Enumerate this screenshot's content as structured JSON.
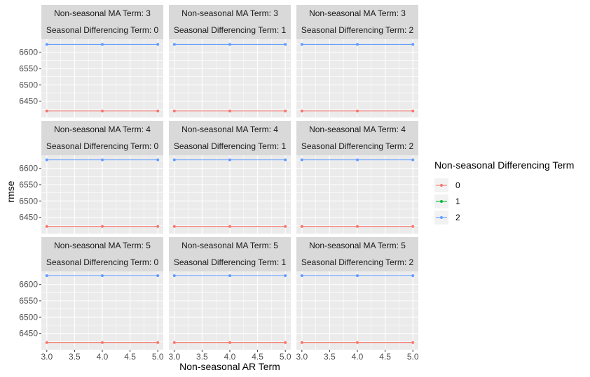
{
  "chart_data": {
    "type": "line",
    "xlabel": "Non-seasonal AR Term",
    "ylabel": "rmse",
    "xlim": [
      3.0,
      5.0
    ],
    "ylim": [
      6400,
      6640
    ],
    "x_ticks": [
      "3.0",
      "3.5",
      "4.0",
      "4.5",
      "5.0"
    ],
    "y_ticks": [
      "6450",
      "6500",
      "6550",
      "6600"
    ],
    "x_tick_values": [
      3.0,
      3.5,
      4.0,
      4.5,
      5.0
    ],
    "y_tick_values": [
      6450,
      6500,
      6550,
      6600
    ],
    "grid": true,
    "legend": {
      "title": "Non-seasonal Differencing Term",
      "position": "right",
      "entries": [
        {
          "label": "0",
          "color": "#F8766D"
        },
        {
          "label": "1",
          "color": "#00BA38"
        },
        {
          "label": "2",
          "color": "#619CFF"
        }
      ]
    },
    "facet_rows": [
      "Non-seasonal MA Term: 3",
      "Non-seasonal MA Term: 4",
      "Non-seasonal MA Term: 5"
    ],
    "facet_cols": [
      "Seasonal Differencing Term: 0",
      "Seasonal Differencing Term: 1",
      "Seasonal Differencing Term: 2"
    ],
    "x": [
      3,
      4,
      5
    ],
    "series": [
      {
        "name": "0",
        "color": "#F8766D",
        "panels": [
          [
            [
              6420,
              6420,
              6420
            ],
            [
              6420,
              6420,
              6420
            ],
            [
              6420,
              6420,
              6420
            ]
          ],
          [
            [
              6422,
              6422,
              6422
            ],
            [
              6422,
              6422,
              6422
            ],
            [
              6422,
              6422,
              6422
            ]
          ],
          [
            [
              6422,
              6422,
              6422
            ],
            [
              6422,
              6422,
              6422
            ],
            [
              6422,
              6422,
              6422
            ]
          ]
        ]
      },
      {
        "name": "2",
        "color": "#619CFF",
        "panels": [
          [
            [
              6624,
              6624,
              6624
            ],
            [
              6624,
              6624,
              6624
            ],
            [
              6624,
              6624,
              6624
            ]
          ],
          [
            [
              6626,
              6626,
              6626
            ],
            [
              6626,
              6626,
              6626
            ],
            [
              6626,
              6626,
              6626
            ]
          ],
          [
            [
              6627,
              6627,
              6627
            ],
            [
              6627,
              6627,
              6627
            ],
            [
              6627,
              6627,
              6627
            ]
          ]
        ]
      }
    ]
  }
}
